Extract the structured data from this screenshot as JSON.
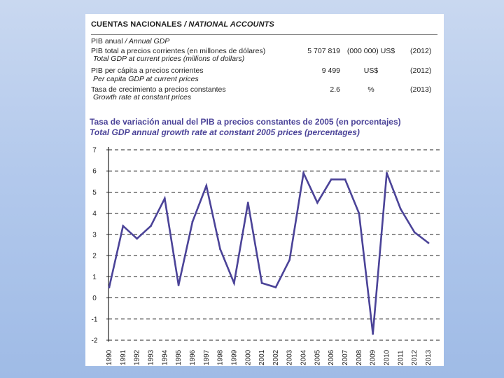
{
  "accounts": {
    "title_es": "CUENTAS NACIONALES",
    "title_en": "/ NATIONAL ACCOUNTS",
    "section_es": "PIB anual",
    "section_en": "/ Annual GDP",
    "rows": [
      {
        "label_es": "PIB total a precios corrientes (en millones de dólares)",
        "label_en": "Total GDP at current prices (millions of dollars)",
        "value": "5 707 819",
        "unit": "(000 000) US$",
        "year": "(2012)"
      },
      {
        "label_es": "PIB per cápita a precios corrientes",
        "label_en": "Per capita GDP at current prices",
        "value": "9 499",
        "unit": "US$",
        "year": "(2012)"
      },
      {
        "label_es": "Tasa de crecimiento a precios constantes",
        "label_en": "Growth rate at constant prices",
        "value": "2.6",
        "unit": "%",
        "year": "(2013)"
      }
    ]
  },
  "colors": {
    "line": "#4b4398",
    "title": "#4b4398",
    "grid": "#222222"
  },
  "chart_data": {
    "type": "line",
    "title": "Tasa de variación anual del PIB a precios constantes de 2005 (en porcentajes)",
    "subtitle": "Total GDP annual growth rate at constant 2005 prices (percentages)",
    "xlabel": "",
    "ylabel": "",
    "ylim": [
      -2,
      7
    ],
    "yticks": [
      "7",
      "6",
      "5",
      "4",
      "3",
      "2",
      "1",
      "0",
      "-1",
      "-2"
    ],
    "grid": true,
    "x": [
      "1990",
      "1991",
      "1992",
      "1993",
      "1994",
      "1995",
      "1996",
      "1997",
      "1998",
      "1999",
      "2000",
      "2001",
      "2002",
      "2003",
      "2004",
      "2005",
      "2006",
      "2007",
      "2008",
      "2009",
      "2010",
      "2011",
      "2012",
      "2013"
    ],
    "series": [
      {
        "name": "Total GDP annual growth rate",
        "values": [
          0.5,
          3.4,
          2.8,
          3.4,
          4.7,
          0.6,
          3.6,
          5.3,
          2.3,
          0.7,
          4.5,
          0.7,
          0.5,
          1.8,
          5.9,
          4.5,
          5.6,
          5.6,
          4.0,
          -1.7,
          5.9,
          4.2,
          3.1,
          2.6
        ]
      }
    ]
  }
}
